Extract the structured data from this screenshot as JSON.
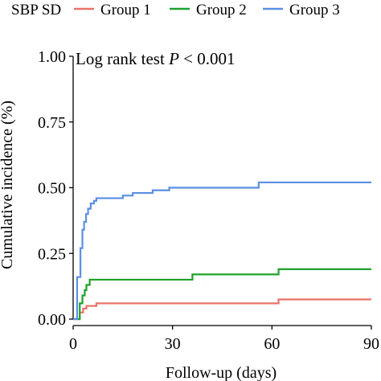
{
  "chart_data": {
    "type": "line",
    "step": true,
    "legend": {
      "title": "SBP SD",
      "placement": "top",
      "entries": [
        "Group 1",
        "Group 2",
        "Group 3"
      ]
    },
    "annotation": {
      "prefix": "Log rank test ",
      "italic": "P",
      "suffix": " < 0.001"
    },
    "xlabel": "Follow-up (days)",
    "ylabel": "Cumulative incidence (%)",
    "xlim": [
      0,
      90
    ],
    "ylim": [
      0,
      1
    ],
    "x_ticks": [
      0,
      30,
      60,
      90
    ],
    "x_tick_labels": [
      "0",
      "30",
      "60",
      "90"
    ],
    "y_ticks": [
      0,
      0.25,
      0.5,
      0.75,
      1.0
    ],
    "y_tick_labels": [
      "0.00",
      "0.25",
      "0.50",
      "0.75",
      "1.00"
    ],
    "grid": false,
    "series": [
      {
        "name": "Group 1",
        "color": "#e8736b",
        "points": [
          [
            0,
            0
          ],
          [
            1,
            0
          ],
          [
            2,
            0.025
          ],
          [
            3,
            0.04
          ],
          [
            4,
            0.05
          ],
          [
            7,
            0.06
          ],
          [
            62,
            0.06
          ],
          [
            62,
            0.075
          ],
          [
            90,
            0.075
          ]
        ]
      },
      {
        "name": "Group 2",
        "color": "#1fa12a",
        "points": [
          [
            0,
            0
          ],
          [
            1,
            0
          ],
          [
            2,
            0.06
          ],
          [
            2.8,
            0.09
          ],
          [
            3.5,
            0.11
          ],
          [
            4,
            0.13
          ],
          [
            5,
            0.15
          ],
          [
            36,
            0.15
          ],
          [
            36,
            0.17
          ],
          [
            62,
            0.17
          ],
          [
            62,
            0.19
          ],
          [
            90,
            0.19
          ]
        ]
      },
      {
        "name": "Group 3",
        "color": "#5b8fe3",
        "points": [
          [
            0,
            0
          ],
          [
            1,
            0
          ],
          [
            1.2,
            0.16
          ],
          [
            2.2,
            0.27
          ],
          [
            2.8,
            0.34
          ],
          [
            3.3,
            0.37
          ],
          [
            3.9,
            0.4
          ],
          [
            4.5,
            0.42
          ],
          [
            5.3,
            0.44
          ],
          [
            6.3,
            0.45
          ],
          [
            7,
            0.46
          ],
          [
            15,
            0.46
          ],
          [
            15,
            0.47
          ],
          [
            18,
            0.48
          ],
          [
            24,
            0.49
          ],
          [
            29,
            0.5
          ],
          [
            56,
            0.5
          ],
          [
            56,
            0.52
          ],
          [
            90,
            0.52
          ]
        ]
      }
    ]
  }
}
